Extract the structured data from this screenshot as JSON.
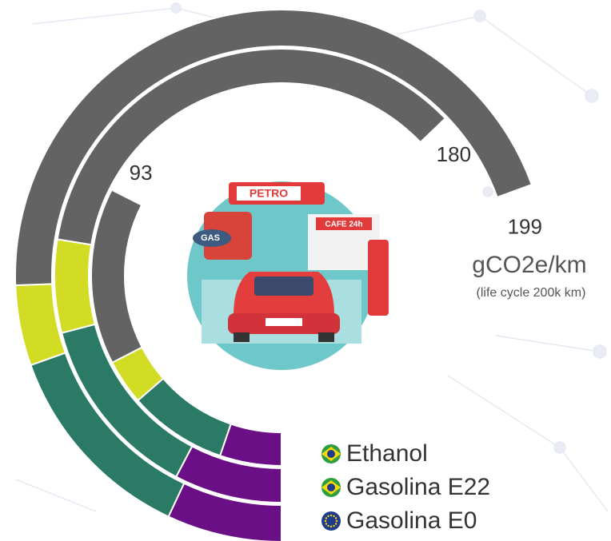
{
  "chart_data": {
    "type": "radial-stacked-bar",
    "categories": [
      "Ethanol",
      "Gasolina E22",
      "Gasolina E0"
    ],
    "totals": [
      93,
      180,
      199
    ],
    "series": [
      {
        "color": "#6b0f86",
        "values": [
          15,
          22,
          20
        ]
      },
      {
        "color": "#2b7a66",
        "values": [
          24,
          38,
          36
        ]
      },
      {
        "color": "#d3dc24",
        "values": [
          11,
          19,
          14
        ]
      },
      {
        "color": "#636363",
        "values": [
          43,
          101,
          129
        ]
      }
    ],
    "unit_label": "gCO2e/km",
    "unit_note": "(life cycle 200k km)",
    "illustration": {
      "sign": "PETRO",
      "cafe": "CAFE 24h",
      "truck": "GAS"
    }
  }
}
